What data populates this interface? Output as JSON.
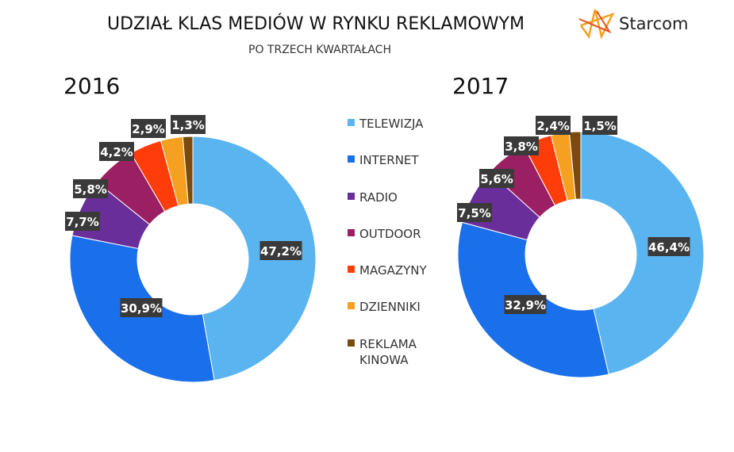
{
  "title": "UDZIAŁ KLAS MEDIÓW  W RYNKU REKLAMOWYM",
  "subtitle": "PO TRZECH KWARTAŁACH",
  "logo": {
    "text": "Starcom"
  },
  "chart_data": [
    {
      "type": "pie",
      "title": "2016",
      "categories": [
        "TELEWIZJA",
        "INTERNET",
        "RADIO",
        "OUTDOOR",
        "MAGAZYNY",
        "DZIENNIKI",
        "REKLAMA KINOWA"
      ],
      "values": [
        47.2,
        30.9,
        7.7,
        5.8,
        4.2,
        2.9,
        1.3
      ],
      "labels": [
        "47,2%",
        "30,9%",
        "7,7%",
        "5,8%",
        "4,2%",
        "2,9%",
        "1,3%"
      ]
    },
    {
      "type": "pie",
      "title": "2017",
      "categories": [
        "TELEWIZJA",
        "INTERNET",
        "RADIO",
        "OUTDOOR",
        "MAGAZYNY",
        "DZIENNIKI",
        "REKLAMA KINOWA"
      ],
      "values": [
        46.4,
        32.9,
        7.5,
        5.6,
        3.8,
        2.4,
        1.5
      ],
      "labels": [
        "46,4%",
        "32,9%",
        "7,5%",
        "5,6%",
        "3,8%",
        "2,4%",
        "1,5%"
      ]
    }
  ],
  "legend": [
    "TELEWIZJA",
    "INTERNET",
    "RADIO",
    "OUTDOOR",
    "MAGAZYNY",
    "DZIENNIKI",
    "REKLAMA KINOWA"
  ],
  "colors": [
    "#5AB4F0",
    "#1A6FEA",
    "#6A2E9A",
    "#9B1F63",
    "#FF3D0A",
    "#F5A020",
    "#7A4A0E"
  ]
}
